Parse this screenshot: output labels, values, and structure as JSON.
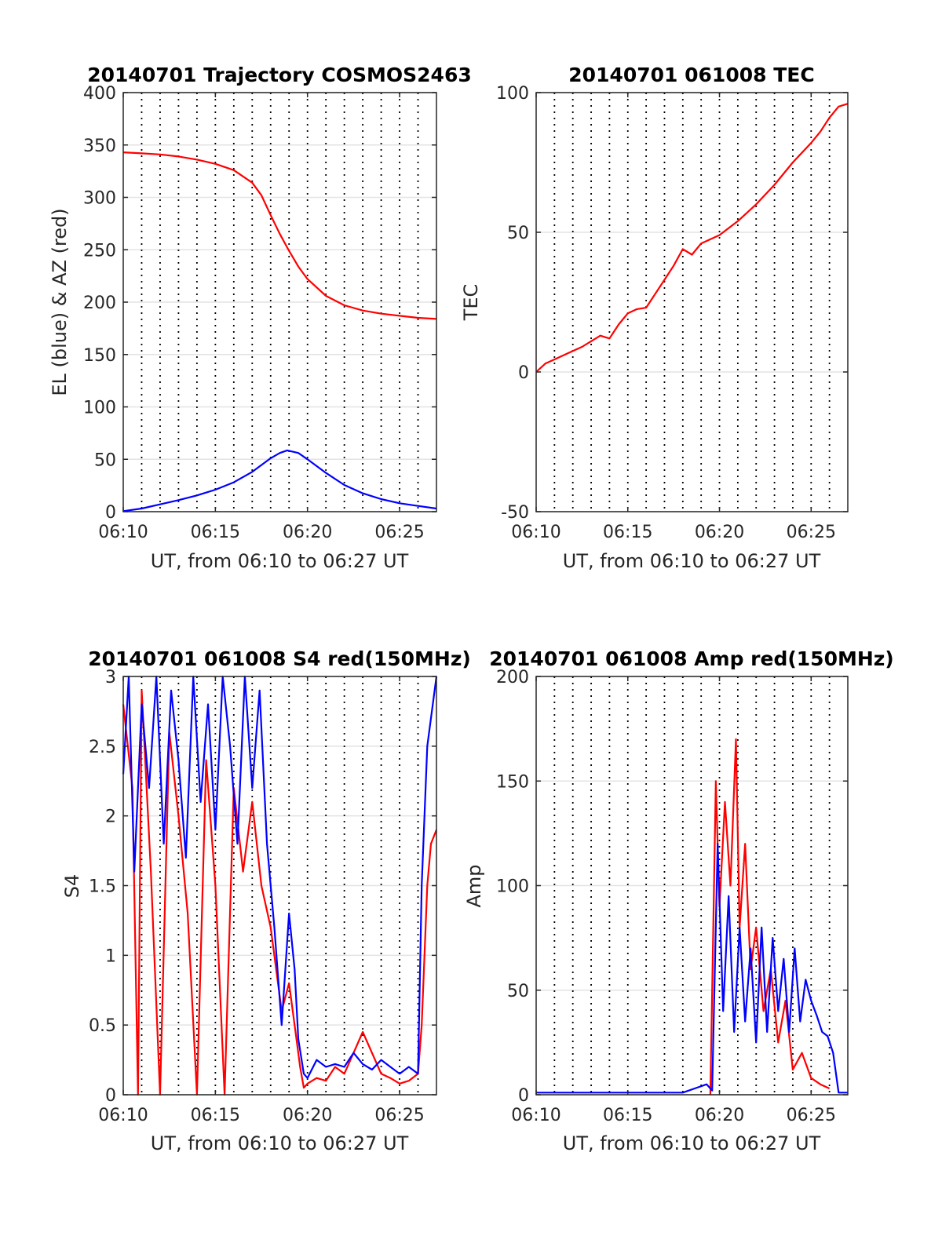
{
  "chart_data": [
    {
      "type": "line",
      "title": "20140701 Trajectory COSMOS2463",
      "xlabel": "UT, from 06:10 to 06:27 UT",
      "ylabel": "EL (blue) & AZ (red)",
      "xlim_minutes_after_0600": [
        10,
        27
      ],
      "ylim": [
        0,
        400
      ],
      "xticks": [
        "06:10",
        "06:15",
        "06:20",
        "06:25"
      ],
      "yticks": [
        0,
        50,
        100,
        150,
        200,
        250,
        300,
        350,
        400
      ],
      "grid": "horizontal solid at y ticks, vertical dotted every 1 minute",
      "series": [
        {
          "color": "#ff0000",
          "x_minutes_after_0600": [
            10,
            11,
            12,
            13,
            14,
            15,
            16,
            17,
            17.5,
            18,
            18.5,
            19,
            19.5,
            20,
            21,
            22,
            23,
            24,
            25,
            26,
            27
          ],
          "values": [
            343,
            342,
            341,
            339,
            336,
            332,
            326,
            314,
            302,
            283,
            265,
            249,
            234,
            222,
            206,
            197,
            192,
            189,
            187,
            185,
            184
          ]
        },
        {
          "color": "#0000ff",
          "x_minutes_after_0600": [
            10,
            11,
            12,
            13,
            14,
            15,
            16,
            17,
            18,
            18.5,
            18.9,
            19.5,
            20,
            21,
            22,
            23,
            24,
            25,
            26,
            27
          ],
          "values": [
            0.5,
            3,
            7,
            11,
            15.5,
            21,
            28,
            38,
            51,
            56,
            58.5,
            56,
            50,
            37,
            25.5,
            17.5,
            12,
            8,
            5.5,
            3
          ]
        }
      ]
    },
    {
      "type": "line",
      "title": "20140701 061008 TEC",
      "xlabel": "UT, from 06:10 to 06:27 UT",
      "ylabel": "TEC",
      "xlim_minutes_after_0600": [
        10,
        27
      ],
      "ylim": [
        -50,
        100
      ],
      "xticks": [
        "06:10",
        "06:15",
        "06:20",
        "06:25"
      ],
      "yticks": [
        -50,
        0,
        50,
        100
      ],
      "grid": "horizontal solid at y ticks, vertical dotted every 1 minute",
      "series": [
        {
          "color": "#ff0000",
          "x_minutes_after_0600": [
            10,
            10.5,
            11,
            11.5,
            12,
            12.5,
            13,
            13.5,
            14,
            14.5,
            15,
            15.5,
            16,
            16.5,
            17,
            17.5,
            18,
            18.5,
            19,
            19.5,
            20,
            21,
            22,
            23,
            24,
            25,
            25.5,
            26,
            26.5,
            27
          ],
          "values": [
            0,
            3,
            4.5,
            6,
            7.5,
            9,
            11,
            13,
            12,
            17,
            21,
            22.5,
            23,
            28,
            33,
            38,
            44,
            42,
            46,
            47.5,
            49,
            54,
            60,
            67,
            75,
            82,
            86,
            91,
            95,
            96
          ]
        }
      ]
    },
    {
      "type": "line",
      "title": "20140701 061008 S4 red(150MHz)",
      "xlabel": "UT, from 06:10 to 06:27 UT",
      "ylabel": "S4",
      "xlim_minutes_after_0600": [
        10,
        27
      ],
      "ylim": [
        0,
        3
      ],
      "xticks": [
        "06:10",
        "06:15",
        "06:20",
        "06:25"
      ],
      "yticks": [
        0,
        0.5,
        1,
        1.5,
        2,
        2.5,
        3
      ],
      "grid": "horizontal solid at y ticks, vertical dotted every 1 minute",
      "series": [
        {
          "color": "#ff0000",
          "x_minutes_after_0600": [
            10,
            10.5,
            10.8,
            11,
            11.5,
            12,
            12.5,
            13,
            13.5,
            14,
            14.5,
            15,
            15.5,
            16,
            16.5,
            17,
            17.5,
            18,
            18.3,
            18.6,
            19,
            19.3,
            19.6,
            19.8,
            20,
            20.5,
            21,
            21.5,
            22,
            22.5,
            23,
            23.5,
            24,
            24.5,
            25,
            25.5,
            26,
            26.2,
            26.5,
            26.7,
            27
          ],
          "values": [
            2.8,
            2.2,
            0,
            2.9,
            1.6,
            0,
            2.6,
            2.0,
            1.3,
            0,
            2.4,
            1.5,
            0,
            2.2,
            1.6,
            2.1,
            1.5,
            1.2,
            0.9,
            0.6,
            0.8,
            0.5,
            0.2,
            0.05,
            0.08,
            0.12,
            0.1,
            0.2,
            0.15,
            0.3,
            0.45,
            0.3,
            0.15,
            0.12,
            0.08,
            0.1,
            0.15,
            0.5,
            1.5,
            1.8,
            1.9
          ]
        },
        {
          "color": "#0000ff",
          "x_minutes_after_0600": [
            10,
            10.3,
            10.6,
            11,
            11.4,
            11.8,
            12.2,
            12.6,
            13,
            13.4,
            13.8,
            14.2,
            14.6,
            15,
            15.4,
            15.8,
            16.2,
            16.6,
            17,
            17.4,
            17.8,
            18.2,
            18.6,
            19,
            19.3,
            19.5,
            19.8,
            20,
            20.5,
            21,
            21.5,
            22,
            22.5,
            23,
            23.5,
            24,
            24.5,
            25,
            25.5,
            26,
            26.2,
            26.5,
            27
          ],
          "values": [
            2.3,
            3,
            1.6,
            2.8,
            2.2,
            3,
            1.8,
            2.9,
            2.4,
            1.7,
            3,
            2.1,
            2.8,
            1.9,
            3,
            2.5,
            1.8,
            3,
            2.2,
            2.9,
            1.8,
            1.2,
            0.5,
            1.3,
            0.9,
            0.4,
            0.15,
            0.12,
            0.25,
            0.2,
            0.22,
            0.2,
            0.3,
            0.22,
            0.18,
            0.25,
            0.2,
            0.15,
            0.2,
            0.15,
            1.5,
            2.5,
            3
          ]
        }
      ]
    },
    {
      "type": "line",
      "title": "20140701 061008 Amp red(150MHz)",
      "xlabel": "UT, from 06:10 to 06:27 UT",
      "ylabel": "Amp",
      "xlim_minutes_after_0600": [
        10,
        27
      ],
      "ylim": [
        0,
        200
      ],
      "xticks": [
        "06:10",
        "06:15",
        "06:20",
        "06:25"
      ],
      "yticks": [
        0,
        50,
        100,
        150,
        200
      ],
      "grid": "horizontal solid at y ticks, vertical dotted every 1 minute",
      "series": [
        {
          "color": "#ff0000",
          "x_minutes_after_0600": [
            19.5,
            19.8,
            20,
            20.3,
            20.6,
            20.9,
            21.1,
            21.4,
            21.7,
            22,
            22.4,
            22.8,
            23.2,
            23.6,
            24,
            24.5,
            25,
            25.5,
            26
          ],
          "values": [
            0,
            150,
            90,
            140,
            100,
            170,
            80,
            120,
            60,
            80,
            40,
            60,
            25,
            45,
            12,
            20,
            8,
            5,
            3
          ]
        },
        {
          "color": "#0000ff",
          "x_minutes_after_0600": [
            10,
            12,
            14,
            16,
            18,
            19.3,
            19.6,
            19.9,
            20.2,
            20.5,
            20.8,
            21.1,
            21.4,
            21.7,
            22,
            22.3,
            22.6,
            22.9,
            23.2,
            23.5,
            23.8,
            24.1,
            24.4,
            24.7,
            25,
            25.3,
            25.6,
            25.9,
            26.2,
            26.5,
            27
          ],
          "values": [
            1,
            1,
            1,
            1,
            1,
            5,
            2,
            120,
            40,
            95,
            30,
            80,
            35,
            70,
            25,
            80,
            30,
            75,
            40,
            65,
            30,
            70,
            35,
            55,
            45,
            38,
            30,
            28,
            20,
            1,
            1
          ]
        }
      ]
    }
  ]
}
